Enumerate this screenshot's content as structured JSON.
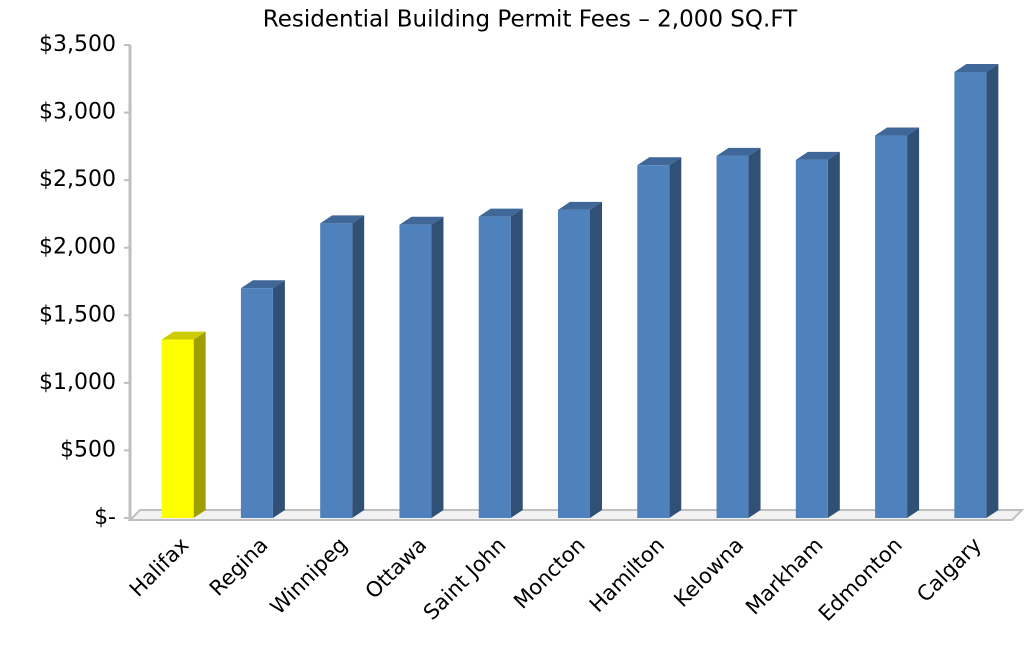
{
  "chart_data": {
    "type": "bar3d",
    "title": "Residential Building Permit Fees – 2,000 SQ.FT",
    "categories": [
      "Halifax",
      "Regina",
      "Winnipeg",
      "Ottawa",
      "Saint John",
      "Moncton",
      "Hamilton",
      "Kelowna",
      "Markham",
      "Edmonton",
      "Calgary"
    ],
    "values": [
      1320,
      1700,
      2180,
      2170,
      2230,
      2280,
      2610,
      2680,
      2650,
      2830,
      3300
    ],
    "colors": [
      "#ffff00",
      "#4f81bd",
      "#4f81bd",
      "#4f81bd",
      "#4f81bd",
      "#4f81bd",
      "#4f81bd",
      "#4f81bd",
      "#4f81bd",
      "#4f81bd",
      "#4f81bd"
    ],
    "ylim": [
      0,
      3500
    ],
    "yticks": [
      {
        "value": 0,
        "label": "$-"
      },
      {
        "value": 500,
        "label": "$500"
      },
      {
        "value": 1000,
        "label": "$1,000"
      },
      {
        "value": 1500,
        "label": "$1,500"
      },
      {
        "value": 2000,
        "label": "$2,000"
      },
      {
        "value": 2500,
        "label": "$2,500"
      },
      {
        "value": 3000,
        "label": "$3,000"
      },
      {
        "value": 3500,
        "label": "$3,500"
      }
    ]
  }
}
